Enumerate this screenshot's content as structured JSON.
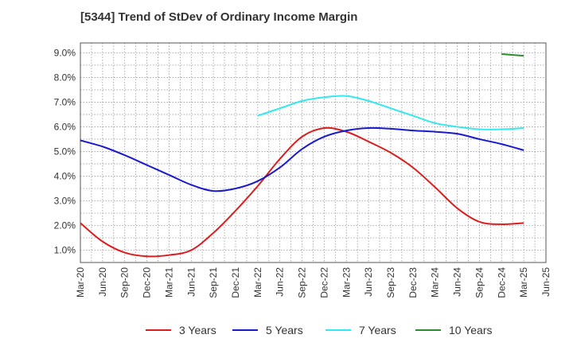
{
  "chart_data": {
    "type": "line",
    "title": "[5344]  Trend of StDev of Ordinary Income Margin",
    "xlabel": "",
    "ylabel": "",
    "x_ticks": [
      "Mar-20",
      "Jun-20",
      "Sep-20",
      "Dec-20",
      "Mar-21",
      "Jun-21",
      "Sep-21",
      "Dec-21",
      "Mar-22",
      "Jun-22",
      "Sep-22",
      "Dec-22",
      "Mar-23",
      "Jun-23",
      "Sep-23",
      "Dec-23",
      "Mar-24",
      "Jun-24",
      "Sep-24",
      "Dec-24",
      "Mar-25",
      "Jun-25"
    ],
    "y_ticks": [
      "1.0%",
      "2.0%",
      "3.0%",
      "4.0%",
      "5.0%",
      "6.0%",
      "7.0%",
      "8.0%",
      "9.0%"
    ],
    "ylim": [
      0.5,
      9.4
    ],
    "grid": true,
    "legend_position": "bottom",
    "series": [
      {
        "name": "3 Years",
        "color": "#dd1c1c",
        "x": [
          "Mar-20",
          "Jun-20",
          "Sep-20",
          "Dec-20",
          "Mar-21",
          "Jun-21",
          "Sep-21",
          "Dec-21",
          "Mar-22",
          "Jun-22",
          "Sep-22",
          "Dec-22",
          "Mar-23",
          "Jun-23",
          "Sep-23",
          "Dec-23",
          "Mar-24",
          "Jun-24",
          "Sep-24",
          "Dec-24",
          "Mar-25"
        ],
        "values": [
          2.1,
          1.35,
          0.9,
          0.75,
          0.8,
          1.0,
          1.7,
          2.6,
          3.6,
          4.7,
          5.6,
          5.95,
          5.8,
          5.4,
          4.95,
          4.35,
          3.55,
          2.7,
          2.15,
          2.05,
          2.1
        ]
      },
      {
        "name": "5 Years",
        "color": "#1a1acc",
        "x": [
          "Mar-20",
          "Jun-20",
          "Sep-20",
          "Dec-20",
          "Mar-21",
          "Jun-21",
          "Sep-21",
          "Dec-21",
          "Mar-22",
          "Jun-22",
          "Sep-22",
          "Dec-22",
          "Mar-23",
          "Jun-23",
          "Sep-23",
          "Dec-23",
          "Mar-24",
          "Jun-24",
          "Sep-24",
          "Dec-24",
          "Mar-25"
        ],
        "values": [
          5.45,
          5.2,
          4.85,
          4.45,
          4.05,
          3.65,
          3.4,
          3.5,
          3.8,
          4.35,
          5.1,
          5.6,
          5.85,
          5.95,
          5.92,
          5.85,
          5.8,
          5.72,
          5.5,
          5.3,
          5.05
        ]
      },
      {
        "name": "7 Years",
        "color": "#33e8ee",
        "x": [
          "Mar-22",
          "Jun-22",
          "Sep-22",
          "Dec-22",
          "Mar-23",
          "Jun-23",
          "Sep-23",
          "Dec-23",
          "Mar-24",
          "Jun-24",
          "Sep-24",
          "Dec-24",
          "Mar-25"
        ],
        "values": [
          6.45,
          6.75,
          7.05,
          7.2,
          7.25,
          7.05,
          6.75,
          6.45,
          6.15,
          6.0,
          5.9,
          5.9,
          5.95
        ]
      },
      {
        "name": "10 Years",
        "color": "#2e8b2e",
        "x": [
          "Dec-24",
          "Mar-25"
        ],
        "values": [
          8.95,
          8.88
        ]
      }
    ]
  }
}
